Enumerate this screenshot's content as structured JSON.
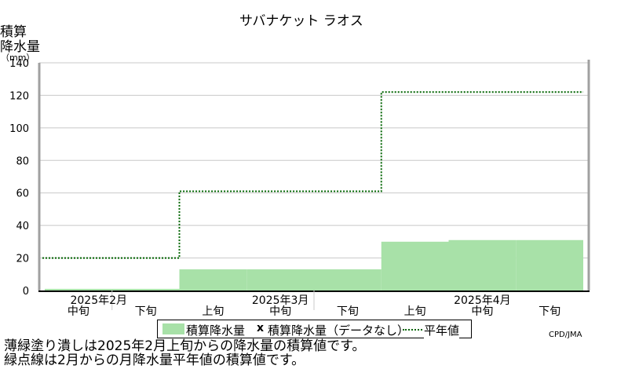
{
  "chart_data": {
    "type": "bar",
    "title": "サバナケット ラオス",
    "ylabel_lines": [
      "積算",
      "降水量",
      "（mm）"
    ],
    "ylim": [
      0,
      140
    ],
    "yticks": [
      0,
      20,
      40,
      60,
      80,
      100,
      120,
      140
    ],
    "dekads": [
      "2月中旬",
      "2月下旬",
      "3月上旬",
      "3月中旬",
      "3月下旬",
      "4月上旬",
      "4月中旬",
      "4月下旬"
    ],
    "x_sub_labels": [
      "中旬",
      "下旬",
      "上旬",
      "中旬",
      "下旬",
      "上旬",
      "中旬",
      "下旬"
    ],
    "x_month_labels": [
      "2025年2月",
      "2025年3月",
      "2025年4月"
    ],
    "series": [
      {
        "name": "積算降水量",
        "kind": "bar",
        "color": "#a8e1a8",
        "values": [
          1,
          1,
          13,
          13,
          13,
          30,
          31,
          31
        ]
      },
      {
        "name": "積算降水量平年値",
        "kind": "step-dotted",
        "color": "#006400",
        "values": [
          20,
          20,
          61,
          61,
          61,
          122,
          122,
          122
        ]
      }
    ],
    "legend": {
      "label_bar": "積算降水量",
      "marker_x": "x",
      "label_missing": "積算降水量（データなし）",
      "label_normal": "平年値"
    },
    "credit": "CPD/JMA",
    "notes": [
      "薄緑塗り潰しは2025年2月上旬からの降水量の積算値です。",
      "緑点線は2月からの月降水量平年値の積算値です。"
    ]
  }
}
